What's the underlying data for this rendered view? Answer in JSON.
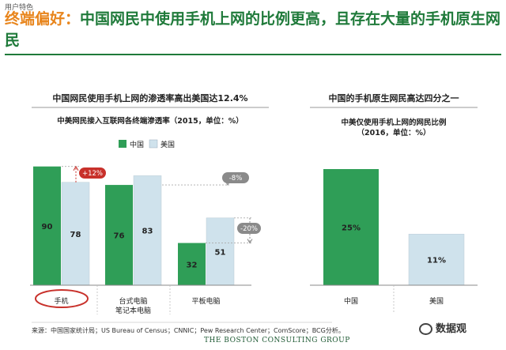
{
  "header": {
    "tag": "用户特色",
    "headline_accent": "终端偏好：",
    "headline_rest": "中国网民中使用手机上网的比例更高，且存在大量的手机原生网民"
  },
  "colors": {
    "china": "#2f9e57",
    "usa": "#cfe2ec",
    "accent_red": "#c8312b",
    "gray_badge": "#8a8a8a",
    "dark_green": "#1f7a3a"
  },
  "chart_data": [
    {
      "type": "bar",
      "title": "中国网民使用手机上网的渗透率高出美国达12.4%",
      "subtitle": "中美网民接入互联网各终端渗透率（2015，单位：%）",
      "legend": [
        "中国",
        "美国"
      ],
      "categories": [
        "手机",
        "台式电脑\n笔记本电脑",
        "平板电脑"
      ],
      "series": [
        {
          "name": "中国",
          "values": [
            90,
            76,
            32
          ]
        },
        {
          "name": "美国",
          "values": [
            78,
            83,
            51
          ]
        }
      ],
      "annotations": [
        "+12%",
        "-8%",
        "-20%"
      ],
      "ylim": [
        0,
        100
      ]
    },
    {
      "type": "bar",
      "title": "中国的手机原生网民高达四分之一",
      "subtitle": "中美仅使用手机上网的网民比例\n（2016，单位：%）",
      "categories": [
        "中国",
        "美国"
      ],
      "values": [
        25,
        11
      ],
      "value_labels": [
        "25%",
        "11%"
      ],
      "ylim": [
        0,
        30
      ]
    }
  ],
  "footer": {
    "source": "来源：中国国家统计局；US Bureau of Census；CNNIC；Pew Research Center；ComScore；BCG分析。",
    "brand": "THE BOSTON CONSULTING GROUP",
    "watermark": "数据观"
  }
}
